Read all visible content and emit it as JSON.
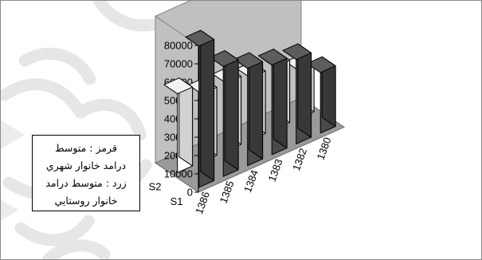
{
  "chart_data": {
    "type": "bar",
    "title": "",
    "xlabel": "",
    "ylabel": "",
    "ylim": [
      0,
      80000
    ],
    "ytick_step": 10000,
    "yticks": [
      "0",
      "10000",
      "20000",
      "30000",
      "40000",
      "50000",
      "60000",
      "70000",
      "80000"
    ],
    "categories": [
      "1386",
      "1385",
      "1384",
      "1383",
      "1382",
      "1380"
    ],
    "series": [
      {
        "name": "S1",
        "values": [
          77000,
          60000,
          53000,
          49000,
          46000,
          33000
        ],
        "color": "#4a4a4a"
      },
      {
        "name": "S2",
        "values": [
          43000,
          37000,
          37000,
          34000,
          34000,
          26000
        ],
        "color": "#ffffff"
      }
    ],
    "grid": false,
    "view": "3d"
  },
  "legend": {
    "lines": [
      "قرمز : متوسط",
      "درامد خانوار شهري",
      "زرد : متوسط درامد",
      "خانوار روستايي"
    ]
  }
}
